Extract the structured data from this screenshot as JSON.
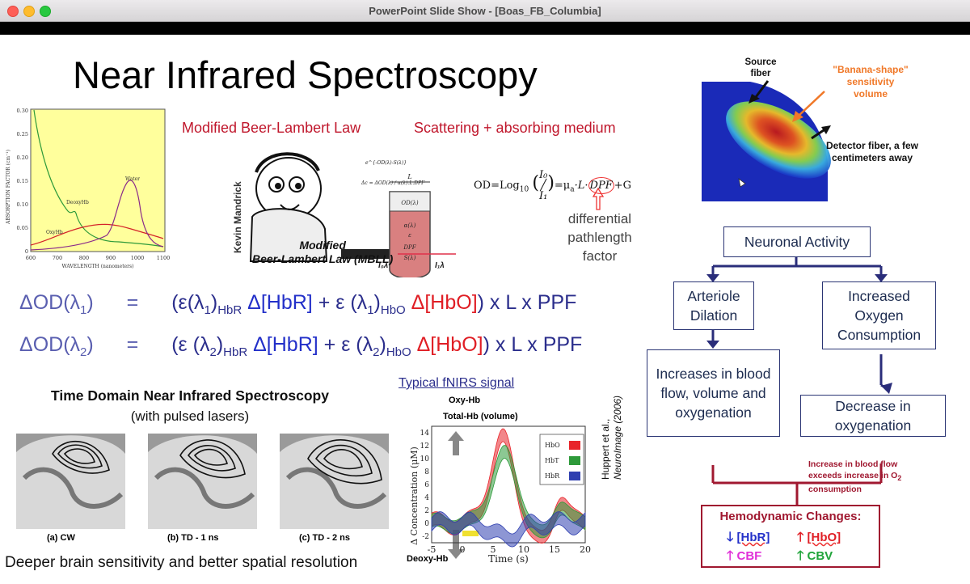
{
  "window": {
    "title": "PowerPoint Slide Show - [Boas_FB_Columbia]"
  },
  "slide": {
    "title": "Near Infrared Spectroscopy",
    "mbll_header": "Modified Beer-Lambert Law",
    "scatter_header": "Scattering + absorbing medium",
    "absorption_chart": {
      "ylabel": "ABSORPTION FACTOR (cm⁻¹)",
      "xlabel": "WAVELENGTH (nanometers)",
      "yticks": [
        "0.30",
        "0.25",
        "0.20",
        "0.15",
        "0.10",
        "0.05",
        "0"
      ],
      "xticks": [
        "600",
        "700",
        "800",
        "900",
        "1000",
        "1100"
      ],
      "curve_labels": {
        "water": "Water",
        "deoxy": "DeoxyHb",
        "oxy": "OxyHb"
      }
    },
    "cartoon": {
      "name": "Kevin Mandrick",
      "caption_line1": "Modified",
      "caption_line2": "Beer-Lambert Law (MBLL)",
      "formula1": "e^{-OD(λ)-S(λ)}",
      "formula2": "Δc = ΔOD(λ) / α(λ).L.DPF",
      "tube_top": "OD(λ)",
      "tube_len": "L",
      "tube_labels": [
        "α(λ)",
        "ε",
        "DPF",
        "S(λ)"
      ],
      "i0": "I₀λ",
      "i1": "I₁λ"
    },
    "od_formula": {
      "prefix": "OD=Log",
      "base": "10",
      "i0": "I₀",
      "i1": "I₁",
      "rhs": "=μ",
      "mu_sub": "a",
      "rest": "·L·",
      "dpf": "DPF",
      "g": "+G"
    },
    "dpf_note": [
      "differential",
      "pathlength",
      "factor"
    ],
    "eq1": {
      "lhs": "ΔOD(λ",
      "lhs_sub": "1",
      "lhs_end": ")",
      "equals": "=",
      "open": "(ε(λ",
      "sub1": "1",
      "close1": ")",
      "hbr_sub": "HbR",
      "hbr": " Δ[HbR]",
      "plus": " + ε (λ",
      "sub2": "1",
      "close2": ")",
      "hbo_sub": "HbO",
      "hbo": " Δ[HbO]",
      "tail": ") x L x PPF"
    },
    "eq2": {
      "lhs": "ΔOD(λ",
      "lhs_sub": "2",
      "lhs_end": ")",
      "equals": "=",
      "open": "(ε (λ",
      "sub1": "2",
      "close1": ")",
      "hbr_sub": "HbR",
      "hbr": " Δ[HbR]",
      "plus": " + ε (λ",
      "sub2": "2",
      "close2": ")",
      "hbo_sub": "HbO",
      "hbo": " Δ[HbO]",
      "tail": ") x L x PPF"
    },
    "td": {
      "title": "Time Domain Near Infrared Spectroscopy",
      "subtitle": "(with pulsed lasers)",
      "captions": [
        "(a) CW",
        "(b) TD - 1 ns",
        "(c) TD - 2 ns"
      ],
      "footer": "Deeper brain sensitivity and better spatial resolution"
    },
    "fnirs": {
      "title": "Typical fNIRS signal",
      "oxy": "Oxy-Hb",
      "total": "Total-Hb (volume)",
      "deoxy": "Deoxy-Hb",
      "ylabel": "Δ Concentration (μM)",
      "xlabel": "Time (s)",
      "yticks": [
        "14",
        "12",
        "10",
        "8",
        "6",
        "4",
        "2",
        "0",
        "-2"
      ],
      "xticks": [
        "-5",
        "0",
        "5",
        "10",
        "15",
        "20"
      ],
      "legend": [
        "HbO",
        "HbT",
        "HbR"
      ],
      "citation_line1": "Huppert et al.,",
      "citation_line2": "NeuroImage (2006)",
      "colors": {
        "hbo": "#e8242a",
        "hbt": "#2e9a3a",
        "hbr": "#2f3fb0"
      }
    },
    "banana": {
      "source": "Source fiber",
      "banana_line1": "\"Banana-shape\"",
      "banana_line2": "sensitivity",
      "banana_line3": "volume",
      "detector_line1": "Detector fiber, a few",
      "detector_line2": "centimeters away"
    },
    "flow": {
      "neuronal": "Neuronal Activity",
      "arteriole": "Arteriole Dilation",
      "oxygen": "Increased Oxygen Consumption",
      "increases": "Increases in blood flow, volume and oxygenation",
      "decrease": "Decrease in oxygenation",
      "note_line1": "Increase in blood flow",
      "note_line2": "exceeds increase in O",
      "note_sub": "2",
      "note_line3": "consumption",
      "hemo_title": "Hemodynamic Changes:",
      "hbr": "[HbR]",
      "hbo": "[HbO]",
      "cbf": "CBF",
      "cbv": "CBV"
    }
  }
}
